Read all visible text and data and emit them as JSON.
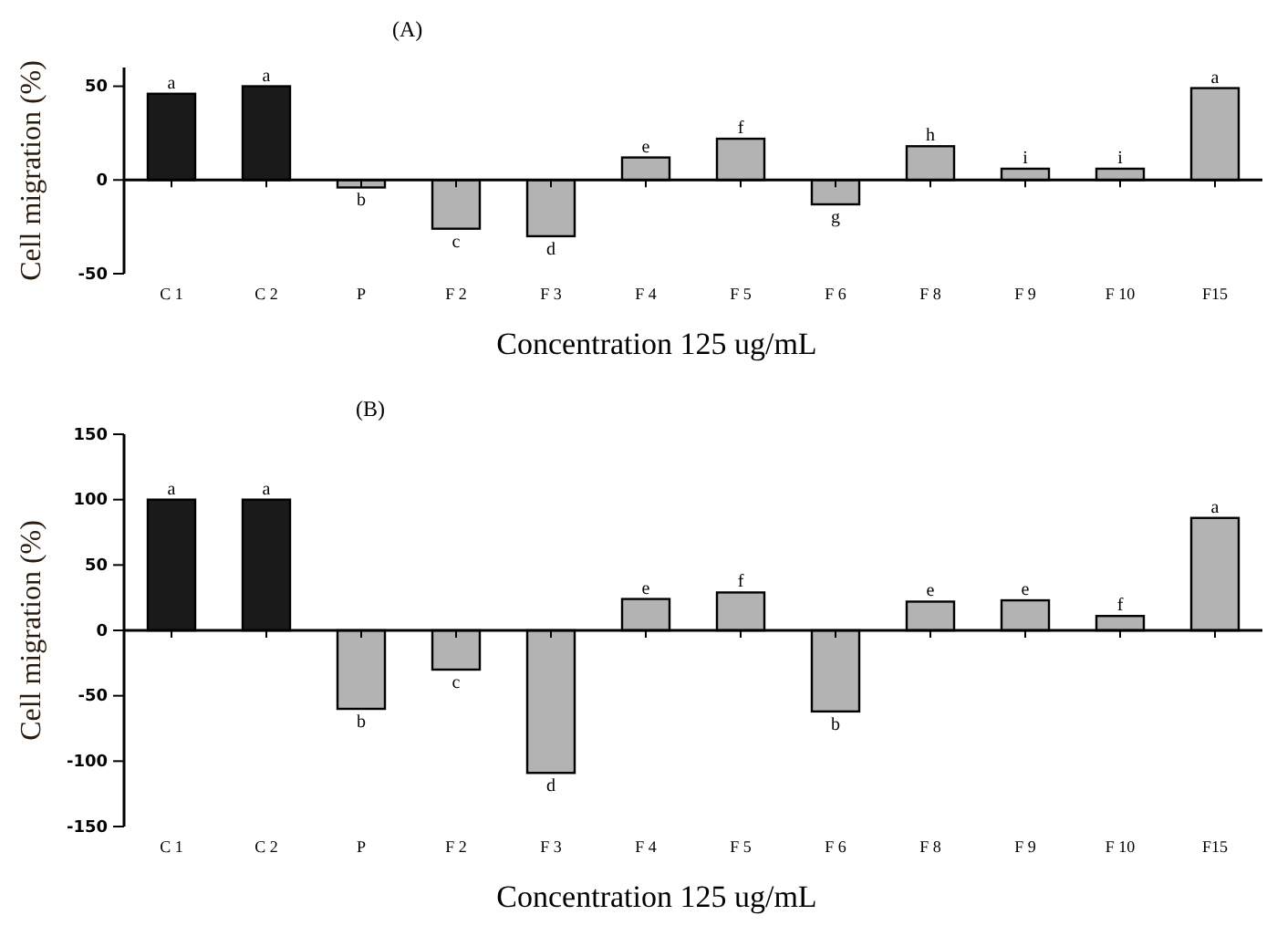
{
  "chart_data": [
    {
      "type": "bar",
      "title": "(A)",
      "xlabel": "Concentration 125 ug/mL",
      "ylabel": "Cell migration (%)",
      "categories": [
        "C 1",
        "C 2",
        "P",
        "F 2",
        "F 3",
        "F 4",
        "F 5",
        "F 6",
        "F 8",
        "F 9",
        "F 10",
        "F15"
      ],
      "values": [
        46,
        50,
        -4,
        -26,
        -30,
        12,
        22,
        -13,
        18,
        6,
        6,
        49
      ],
      "colors": [
        "#1a1a1a",
        "#1a1a1a",
        "#b3b3b3",
        "#b3b3b3",
        "#b3b3b3",
        "#b3b3b3",
        "#b3b3b3",
        "#b3b3b3",
        "#b3b3b3",
        "#b3b3b3",
        "#b3b3b3",
        "#b3b3b3"
      ],
      "value_labels": [
        "a",
        "a",
        "b",
        "c",
        "d",
        "e",
        "f",
        "g",
        "h",
        "i",
        "i",
        "a"
      ],
      "ylim": [
        -50,
        60
      ],
      "yticks": [
        -50,
        0,
        50
      ]
    },
    {
      "type": "bar",
      "title": "(B)",
      "xlabel": "Concentration 125 ug/mL",
      "ylabel": "Cell migration (%)",
      "categories": [
        "C 1",
        "C 2",
        "P",
        "F 2",
        "F 3",
        "F 4",
        "F 5",
        "F 6",
        "F 8",
        "F 9",
        "F 10",
        "F15"
      ],
      "values": [
        100,
        100,
        -60,
        -30,
        -109,
        24,
        29,
        -62,
        22,
        23,
        11,
        86
      ],
      "colors": [
        "#1a1a1a",
        "#1a1a1a",
        "#b3b3b3",
        "#b3b3b3",
        "#b3b3b3",
        "#b3b3b3",
        "#b3b3b3",
        "#b3b3b3",
        "#b3b3b3",
        "#b3b3b3",
        "#b3b3b3",
        "#b3b3b3"
      ],
      "value_labels": [
        "a",
        "a",
        "b",
        "c",
        "d",
        "e",
        "f",
        "b",
        "e",
        "e",
        "f",
        "a"
      ],
      "ylim": [
        -150,
        150
      ],
      "yticks": [
        -150,
        -100,
        -50,
        0,
        50,
        100,
        150
      ]
    }
  ]
}
